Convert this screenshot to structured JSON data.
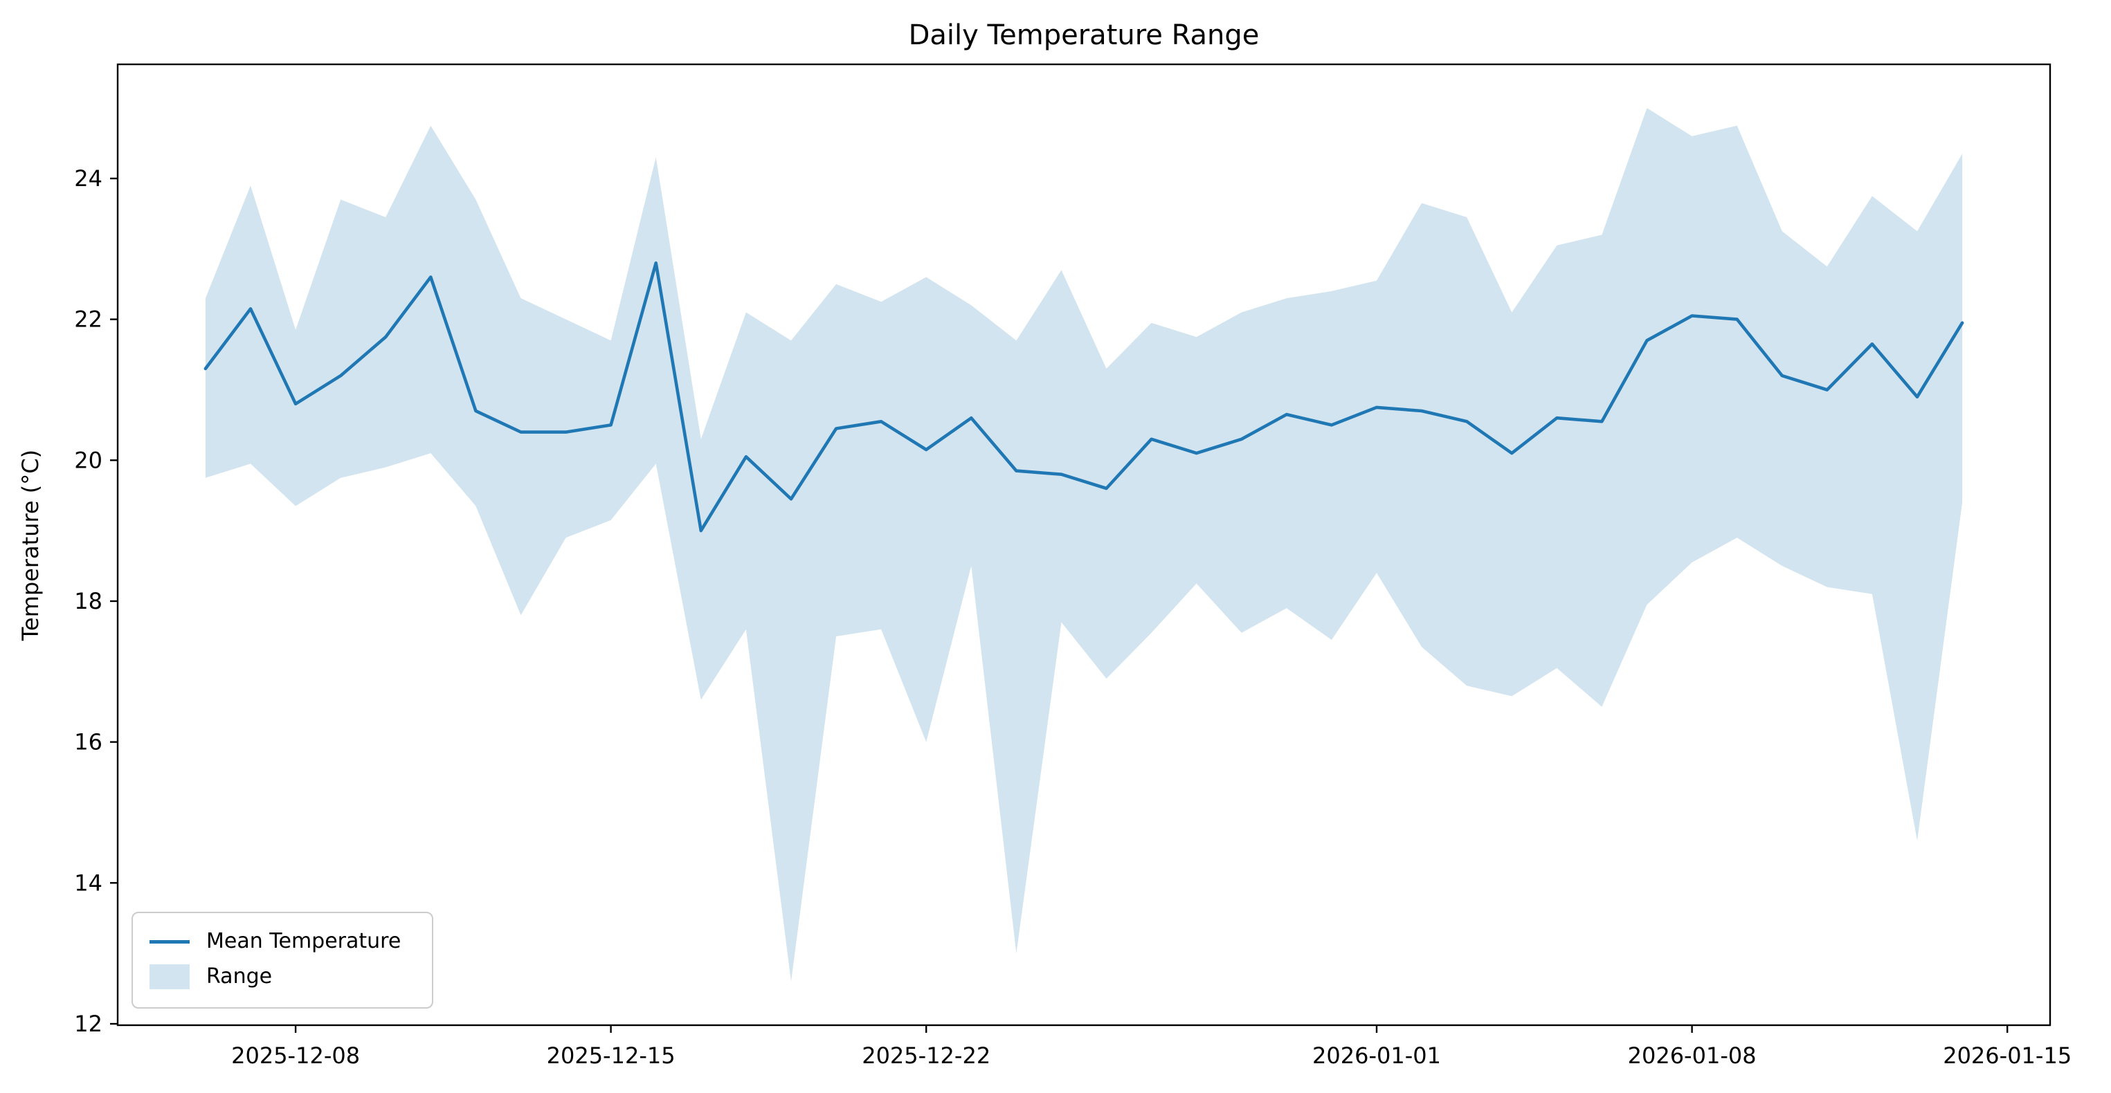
{
  "title": "Daily Temperature Range",
  "legend": {
    "items": [
      {
        "label": "Mean Temperature",
        "swatch": "line-swatch"
      },
      {
        "label": "Range",
        "swatch": "patch-swatch"
      }
    ],
    "position": "lower left"
  },
  "colors": {
    "line": "#1f77b4",
    "band": "rgba(31,119,180,0.2)",
    "spine": "#000000",
    "tick_label": "#000000",
    "legend_border": "#cccccc",
    "background": "#ffffff"
  },
  "chart_data": {
    "type": "line",
    "title": "Daily Temperature Range",
    "xlabel": "",
    "ylabel": "Temperature (°C)",
    "grid": false,
    "legend_position": "lower left",
    "x": [
      "2025-12-06",
      "2025-12-07",
      "2025-12-08",
      "2025-12-09",
      "2025-12-10",
      "2025-12-11",
      "2025-12-12",
      "2025-12-13",
      "2025-12-14",
      "2025-12-15",
      "2025-12-16",
      "2025-12-17",
      "2025-12-18",
      "2025-12-19",
      "2025-12-20",
      "2025-12-21",
      "2025-12-22",
      "2025-12-23",
      "2025-12-24",
      "2025-12-25",
      "2025-12-26",
      "2025-12-27",
      "2025-12-28",
      "2025-12-29",
      "2025-12-30",
      "2025-12-31",
      "2026-01-01",
      "2026-01-02",
      "2026-01-03",
      "2026-01-04",
      "2026-01-05",
      "2026-01-06",
      "2026-01-07",
      "2026-01-08",
      "2026-01-09",
      "2026-01-10",
      "2026-01-11",
      "2026-01-12",
      "2026-01-13",
      "2026-01-14"
    ],
    "series": [
      {
        "name": "Mean Temperature",
        "type": "line",
        "values": [
          21.3,
          22.15,
          20.8,
          21.2,
          21.75,
          22.6,
          20.7,
          20.4,
          20.4,
          20.5,
          22.8,
          19.0,
          20.05,
          19.45,
          20.45,
          20.55,
          20.15,
          20.6,
          19.85,
          19.8,
          19.6,
          20.3,
          20.1,
          20.3,
          20.65,
          20.5,
          20.75,
          20.7,
          20.55,
          20.1,
          20.6,
          20.55,
          21.7,
          22.05,
          22.0,
          21.2,
          21.0,
          21.65,
          20.9,
          21.95
        ]
      },
      {
        "name": "Range",
        "type": "area",
        "upper": [
          22.3,
          23.9,
          21.85,
          23.7,
          23.45,
          24.75,
          23.7,
          22.3,
          22.0,
          21.7,
          24.3,
          20.3,
          22.1,
          21.7,
          22.5,
          22.25,
          22.6,
          22.2,
          21.7,
          22.7,
          21.3,
          21.95,
          21.75,
          22.1,
          22.3,
          22.4,
          22.55,
          23.65,
          23.45,
          22.1,
          23.05,
          23.2,
          25.0,
          24.6,
          24.75,
          23.25,
          22.75,
          23.75,
          23.25,
          24.35
        ],
        "lower": [
          19.75,
          19.95,
          19.35,
          19.75,
          19.9,
          20.1,
          19.35,
          17.8,
          18.9,
          19.15,
          19.95,
          16.6,
          17.6,
          12.6,
          17.5,
          17.6,
          16.0,
          18.5,
          13.0,
          17.7,
          16.9,
          17.55,
          18.25,
          17.55,
          17.9,
          17.45,
          18.4,
          17.35,
          16.8,
          16.65,
          17.05,
          16.5,
          17.95,
          18.55,
          18.9,
          18.5,
          18.2,
          18.1,
          14.6,
          19.4
        ]
      }
    ],
    "yticks": [
      12,
      14,
      16,
      18,
      20,
      22,
      24
    ],
    "xticks": [
      "2025-12-08",
      "2025-12-15",
      "2025-12-22",
      "2026-01-01",
      "2026-01-08",
      "2026-01-15"
    ],
    "ylim": [
      11.98,
      25.62
    ],
    "xlim_day_offsets": [
      -1.95,
      40.95
    ]
  }
}
